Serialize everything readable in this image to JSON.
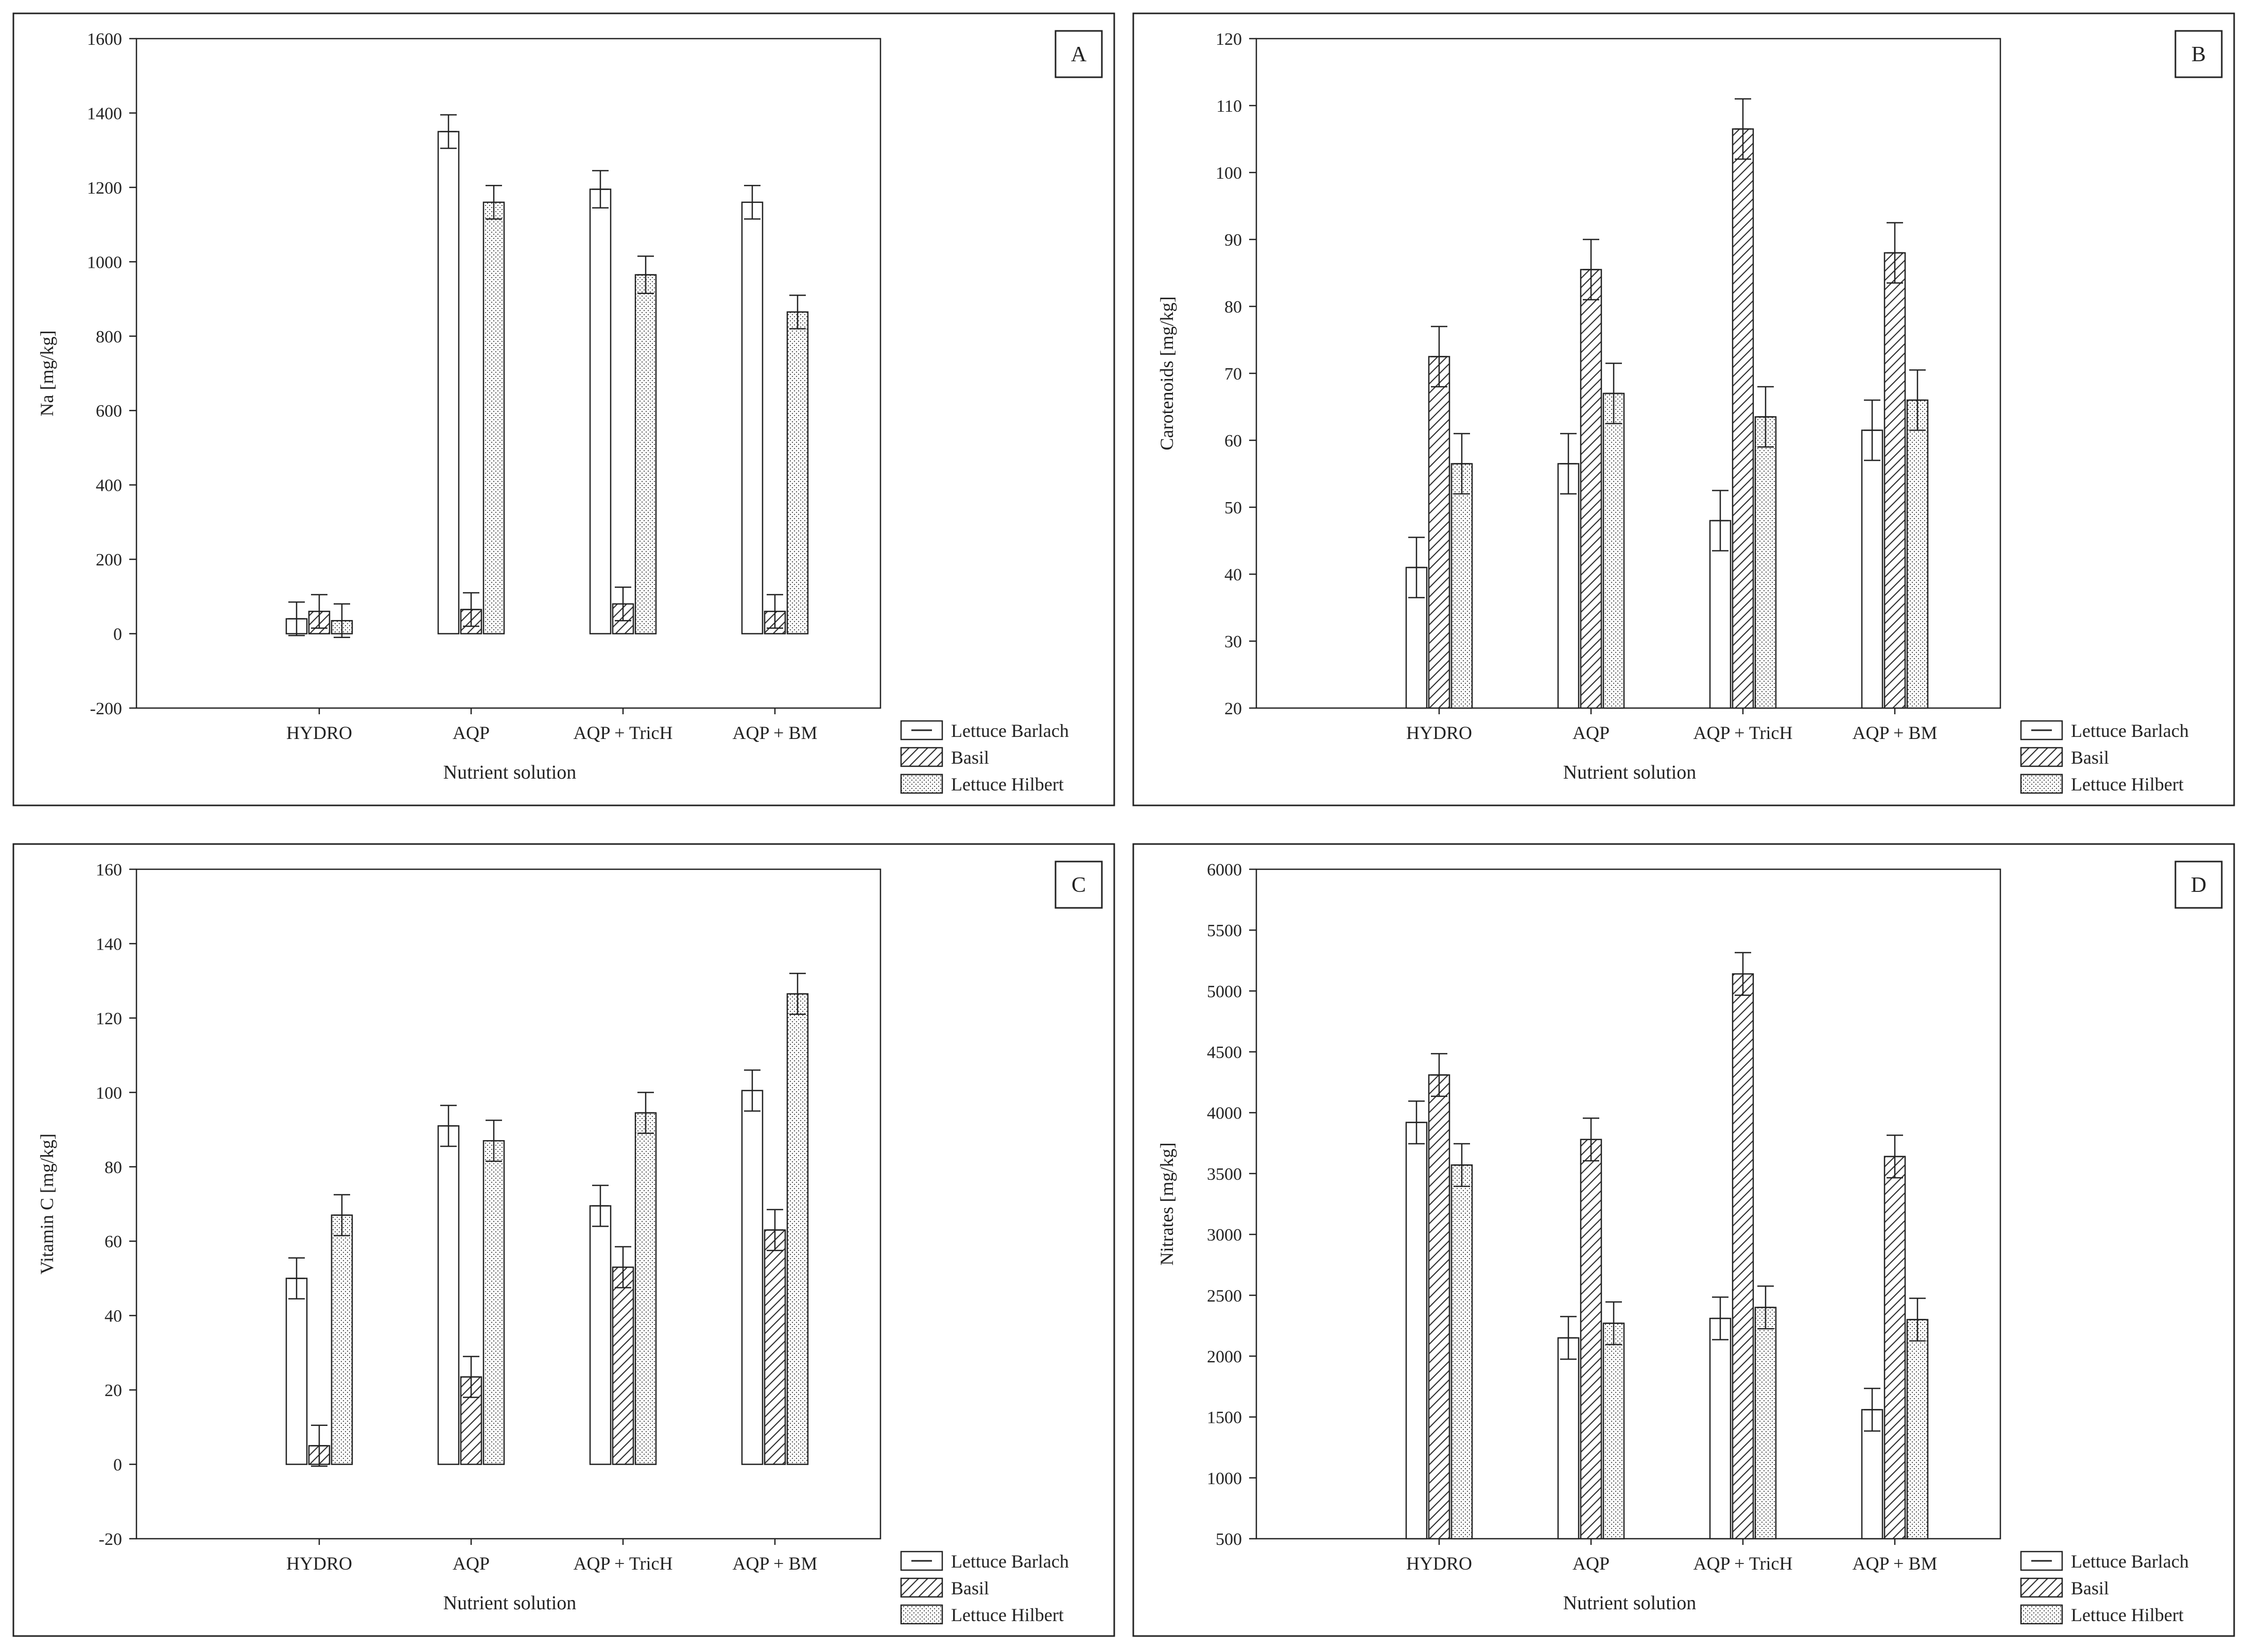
{
  "legend_labels": [
    "Lettuce Barlach",
    "Basil",
    "Lettuce Hilbert"
  ],
  "chart_data": [
    {
      "panel": "A",
      "type": "bar",
      "xlabel": "Nutrient solution",
      "ylabel": "Na [mg/kg]",
      "categories": [
        "HYDRO",
        "AQP",
        "AQP + TricH",
        "AQP + BM"
      ],
      "ylim": [
        -200,
        1600
      ],
      "yticks": [
        "-200",
        "0",
        "200",
        "400",
        "600",
        "800",
        "1000",
        "1200",
        "1400",
        "1600"
      ],
      "series": [
        {
          "name": "Lettuce Barlach",
          "values": [
            40,
            1350,
            1195,
            1160
          ],
          "errors": [
            45,
            45,
            50,
            45
          ]
        },
        {
          "name": "Basil",
          "values": [
            60,
            65,
            80,
            60
          ],
          "errors": [
            45,
            45,
            45,
            45
          ]
        },
        {
          "name": "Lettuce Hilbert",
          "values": [
            35,
            1160,
            965,
            865
          ],
          "errors": [
            45,
            45,
            50,
            45
          ]
        }
      ]
    },
    {
      "panel": "B",
      "type": "bar",
      "xlabel": "Nutrient solution",
      "ylabel": "Carotenoids [mg/kg]",
      "categories": [
        "HYDRO",
        "AQP",
        "AQP + TricH",
        "AQP + BM"
      ],
      "ylim": [
        20,
        120
      ],
      "yticks": [
        "20",
        "30",
        "40",
        "50",
        "60",
        "70",
        "80",
        "90",
        "100",
        "110",
        "120"
      ],
      "series": [
        {
          "name": "Lettuce Barlach",
          "values": [
            41,
            56.5,
            48,
            61.5
          ],
          "errors": [
            4.5,
            4.5,
            4.5,
            4.5
          ]
        },
        {
          "name": "Basil",
          "values": [
            72.5,
            85.5,
            106.5,
            88
          ],
          "errors": [
            4.5,
            4.5,
            4.5,
            4.5
          ]
        },
        {
          "name": "Lettuce Hilbert",
          "values": [
            56.5,
            67,
            63.5,
            66
          ],
          "errors": [
            4.5,
            4.5,
            4.5,
            4.5
          ]
        }
      ]
    },
    {
      "panel": "C",
      "type": "bar",
      "xlabel": "Nutrient solution",
      "ylabel": "Vitamin C [mg/kg]",
      "categories": [
        "HYDRO",
        "AQP",
        "AQP + TricH",
        "AQP + BM"
      ],
      "ylim": [
        -20,
        160
      ],
      "yticks": [
        "-20",
        "0",
        "20",
        "40",
        "60",
        "80",
        "100",
        "120",
        "140",
        "160"
      ],
      "series": [
        {
          "name": "Lettuce Barlach",
          "values": [
            50,
            91,
            69.5,
            100.5
          ],
          "errors": [
            5.5,
            5.5,
            5.5,
            5.5
          ]
        },
        {
          "name": "Basil",
          "values": [
            5,
            23.5,
            53,
            63
          ],
          "errors": [
            5.5,
            5.5,
            5.5,
            5.5
          ]
        },
        {
          "name": "Lettuce Hilbert",
          "values": [
            67,
            87,
            94.5,
            126.5
          ],
          "errors": [
            5.5,
            5.5,
            5.5,
            5.5
          ]
        }
      ]
    },
    {
      "panel": "D",
      "type": "bar",
      "xlabel": "Nutrient solution",
      "ylabel": "Nitrates [mg/kg]",
      "categories": [
        "HYDRO",
        "AQP",
        "AQP + TricH",
        "AQP + BM"
      ],
      "ylim": [
        500,
        6000
      ],
      "yticks": [
        "500",
        "1000",
        "1500",
        "2000",
        "2500",
        "3000",
        "3500",
        "4000",
        "4500",
        "5000",
        "5500",
        "6000"
      ],
      "series": [
        {
          "name": "Lettuce Barlach",
          "values": [
            3920,
            2150,
            2310,
            1560
          ],
          "errors": [
            175,
            175,
            175,
            175
          ]
        },
        {
          "name": "Basil",
          "values": [
            4310,
            3780,
            5140,
            3640
          ],
          "errors": [
            175,
            175,
            175,
            175
          ]
        },
        {
          "name": "Lettuce Hilbert",
          "values": [
            3570,
            2270,
            2400,
            2300
          ],
          "errors": [
            175,
            175,
            175,
            175
          ]
        }
      ]
    }
  ]
}
